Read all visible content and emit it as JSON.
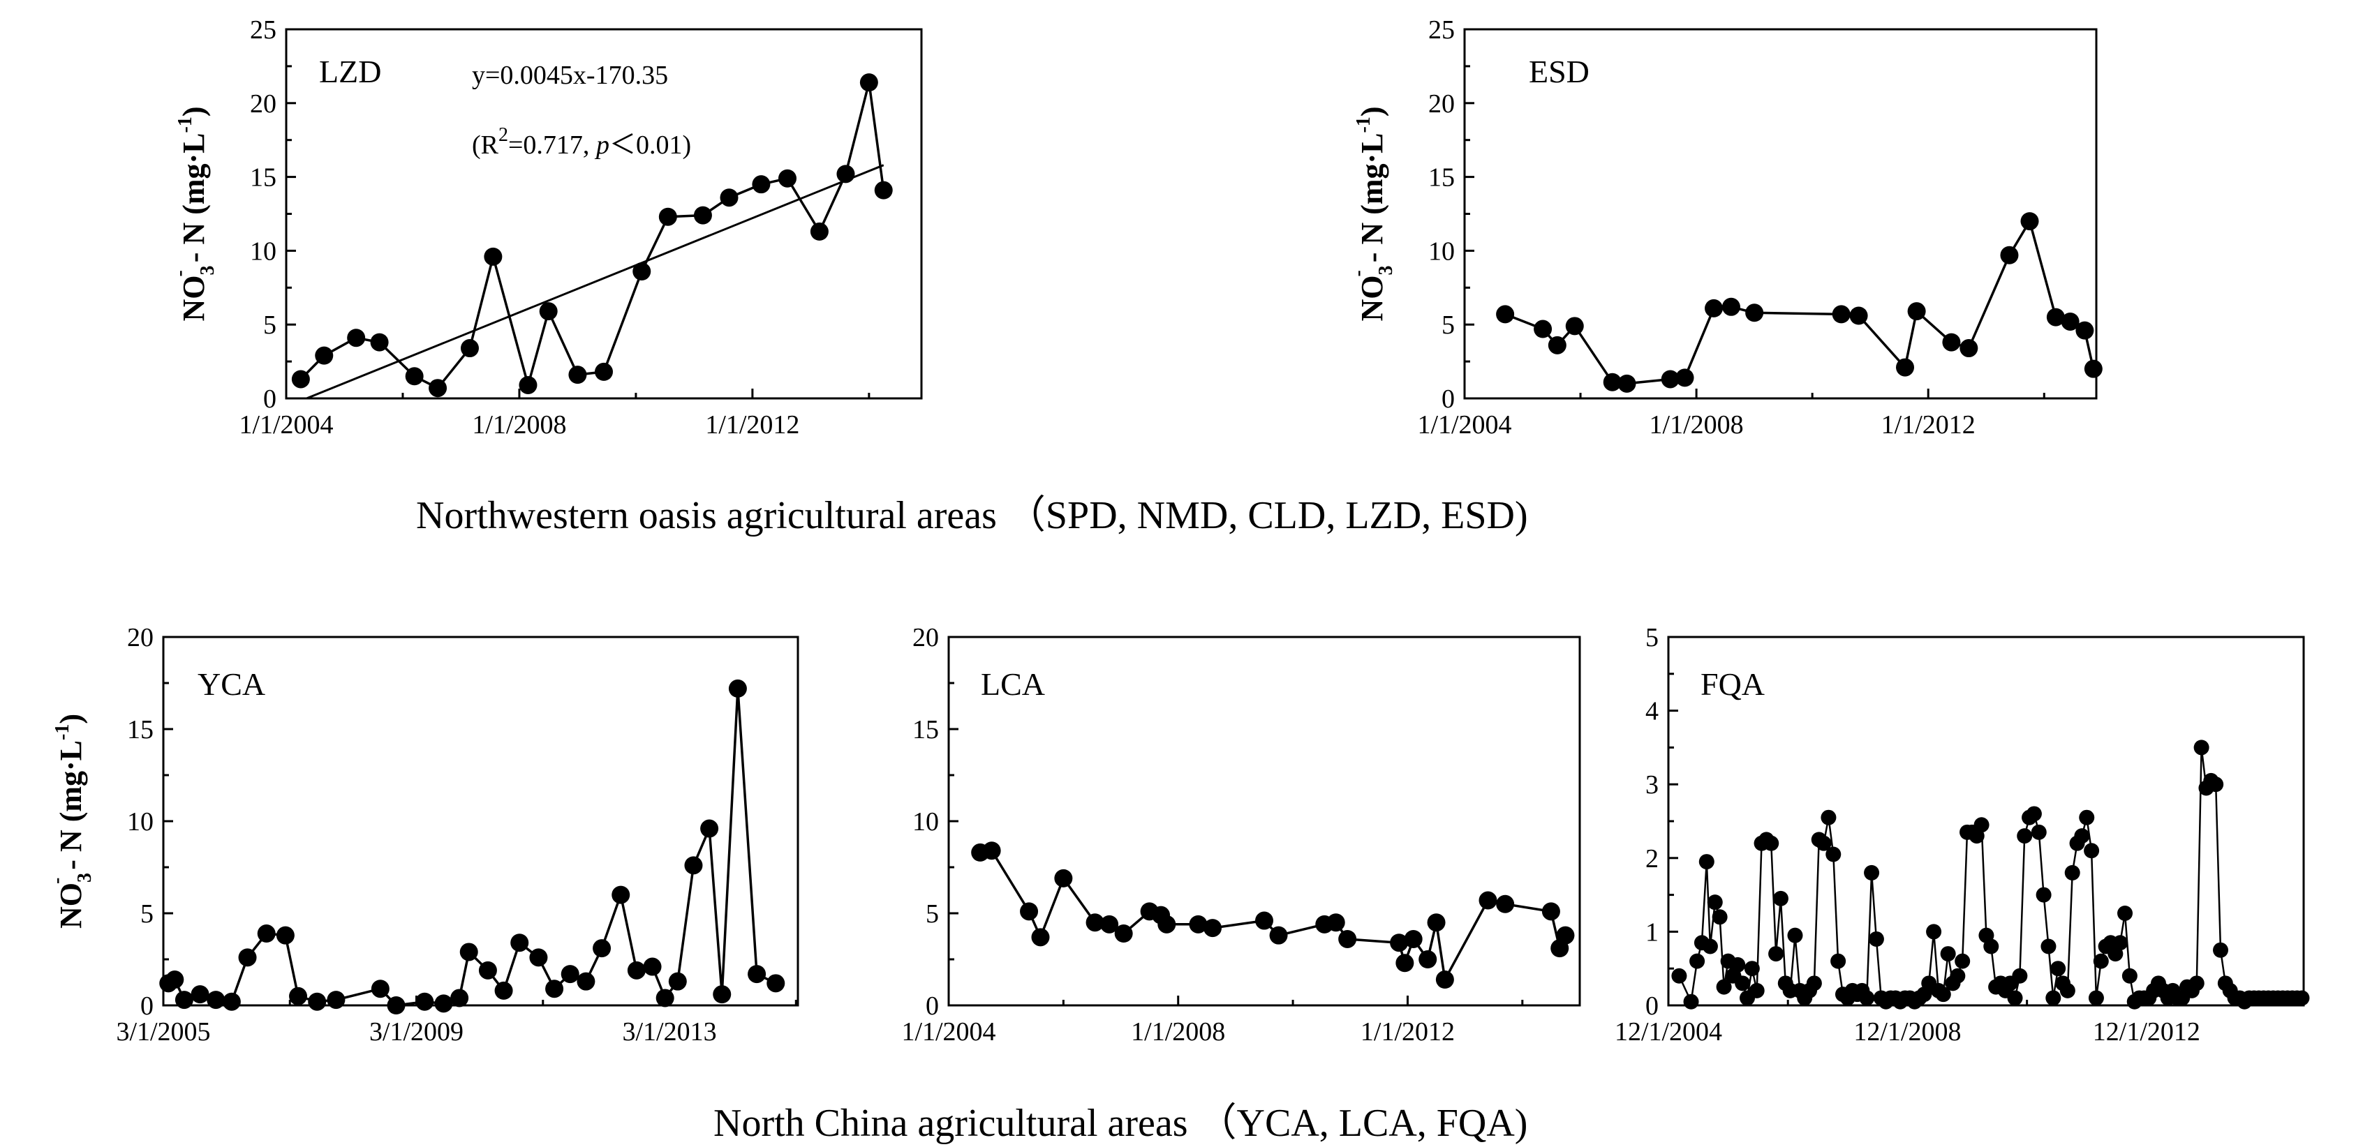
{
  "figure": {
    "caption_top": "Northwestern oasis agricultural areas （SPD, NMD, CLD, LZD, ESD)",
    "caption_bottom": "North China agricultural areas （YCA, LCA, FQA)"
  },
  "chart_data": [
    {
      "id": "LZD",
      "type": "line",
      "panel_label": "LZD",
      "ylabel": "NO3⁻ - N (mg·L⁻¹)",
      "xlim": [
        2004.0,
        2014.9
      ],
      "ylim": [
        0,
        25
      ],
      "yticks": [
        0,
        5,
        10,
        15,
        20,
        25
      ],
      "xticks": [
        {
          "v": 2004.0,
          "label": "1/1/2004"
        },
        {
          "v": 2008.0,
          "label": "1/1/2008"
        },
        {
          "v": 2012.0,
          "label": "1/1/2012"
        }
      ],
      "x": [
        2004.25,
        2004.65,
        2005.2,
        2005.6,
        2006.2,
        2006.6,
        2007.15,
        2007.55,
        2008.15,
        2008.5,
        2009.0,
        2009.45,
        2010.1,
        2010.55,
        2011.15,
        2011.6,
        2012.15,
        2012.6,
        2013.15,
        2013.6,
        2014.0,
        2014.25
      ],
      "values": [
        1.3,
        2.9,
        4.1,
        3.8,
        1.5,
        0.7,
        3.4,
        9.6,
        0.9,
        5.9,
        1.6,
        1.8,
        8.6,
        12.3,
        12.4,
        13.6,
        14.5,
        14.9,
        11.3,
        15.2,
        21.4,
        14.1
      ],
      "trend": {
        "x": [
          2004.35,
          2014.25
        ],
        "y": [
          0.0,
          15.8
        ]
      },
      "annotations": {
        "equation": "y=0.0045x-170.35",
        "r2_open": "(R",
        "r2_sup": "2",
        "r2_mid": "=0.717, ",
        "p_italic": "p",
        "r2_close": "＜0.01)"
      }
    },
    {
      "id": "ESD",
      "type": "line",
      "panel_label": "ESD",
      "ylabel": "NO3⁻ - N (mg·L⁻¹)",
      "xlim": [
        2004.0,
        2014.9
      ],
      "ylim": [
        0,
        25
      ],
      "yticks": [
        0,
        5,
        10,
        15,
        20,
        25
      ],
      "xticks": [
        {
          "v": 2004.0,
          "label": "1/1/2004"
        },
        {
          "v": 2008.0,
          "label": "1/1/2008"
        },
        {
          "v": 2012.0,
          "label": "1/1/2012"
        }
      ],
      "x": [
        2004.7,
        2005.35,
        2005.6,
        2005.9,
        2006.55,
        2006.8,
        2007.55,
        2007.8,
        2008.3,
        2008.6,
        2009.0,
        2010.5,
        2010.8,
        2011.6,
        2011.8,
        2012.4,
        2012.7,
        2013.4,
        2013.75,
        2014.2,
        2014.45,
        2014.7,
        2014.85
      ],
      "values": [
        5.7,
        4.7,
        3.6,
        4.9,
        1.1,
        1.0,
        1.3,
        1.4,
        6.1,
        6.2,
        5.8,
        5.7,
        5.6,
        2.1,
        5.9,
        3.8,
        3.4,
        9.7,
        12.0,
        5.5,
        5.2,
        4.6,
        2.0
      ]
    },
    {
      "id": "YCA",
      "type": "line",
      "panel_label": "YCA",
      "ylabel": "NO3⁻ - N (mg·L⁻¹)",
      "xlim": [
        2005.17,
        2015.2
      ],
      "ylim": [
        0,
        20
      ],
      "yticks": [
        0,
        5,
        10,
        15,
        20
      ],
      "xticks": [
        {
          "v": 2005.17,
          "label": "3/1/2005"
        },
        {
          "v": 2009.17,
          "label": "3/1/2009"
        },
        {
          "v": 2013.17,
          "label": "3/1/2013"
        }
      ],
      "x": [
        2005.25,
        2005.35,
        2005.5,
        2005.75,
        2006.0,
        2006.25,
        2006.5,
        2006.8,
        2007.1,
        2007.3,
        2007.6,
        2007.9,
        2008.6,
        2008.85,
        2009.3,
        2009.6,
        2009.85,
        2010.0,
        2010.3,
        2010.55,
        2010.8,
        2011.1,
        2011.35,
        2011.6,
        2011.85,
        2012.1,
        2012.4,
        2012.65,
        2012.9,
        2013.1,
        2013.3,
        2013.55,
        2013.8,
        2014.0,
        2014.25,
        2014.55,
        2014.85
      ],
      "values": [
        1.2,
        1.4,
        0.3,
        0.6,
        0.3,
        0.2,
        2.6,
        3.9,
        3.8,
        0.5,
        0.2,
        0.3,
        0.9,
        0.0,
        0.2,
        0.1,
        0.4,
        2.9,
        1.9,
        0.8,
        3.4,
        2.6,
        0.9,
        1.7,
        1.3,
        3.1,
        6.0,
        1.9,
        2.1,
        0.4,
        1.3,
        7.6,
        9.6,
        0.6,
        17.2,
        1.7,
        1.2
      ]
    },
    {
      "id": "LCA",
      "type": "line",
      "panel_label": "LCA",
      "ylabel": "",
      "xlim": [
        2004.0,
        2015.0
      ],
      "ylim": [
        0,
        20
      ],
      "yticks": [
        0,
        5,
        10,
        15,
        20
      ],
      "xticks": [
        {
          "v": 2004.0,
          "label": "1/1/2004"
        },
        {
          "v": 2008.0,
          "label": "1/1/2008"
        },
        {
          "v": 2012.0,
          "label": "1/1/2012"
        }
      ],
      "x": [
        2004.55,
        2004.75,
        2005.4,
        2005.6,
        2006.0,
        2006.55,
        2006.8,
        2007.05,
        2007.5,
        2007.7,
        2007.8,
        2008.35,
        2008.6,
        2009.5,
        2009.75,
        2010.55,
        2010.75,
        2010.95,
        2011.85,
        2011.95,
        2012.1,
        2012.35,
        2012.5,
        2012.65,
        2013.4,
        2013.7,
        2014.5,
        2014.65,
        2014.75
      ],
      "values": [
        8.3,
        8.4,
        5.1,
        3.7,
        6.9,
        4.5,
        4.4,
        3.9,
        5.1,
        4.9,
        4.4,
        4.4,
        4.2,
        4.6,
        3.8,
        4.4,
        4.5,
        3.6,
        3.4,
        2.3,
        3.6,
        2.5,
        4.5,
        1.4,
        5.7,
        5.5,
        5.1,
        3.1,
        3.8
      ]
    },
    {
      "id": "FQA",
      "type": "line",
      "panel_label": "FQA",
      "ylabel": "",
      "xlim": [
        2004.92,
        2015.55
      ],
      "ylim": [
        0,
        5
      ],
      "yticks": [
        0,
        1,
        2,
        3,
        4,
        5
      ],
      "xticks": [
        {
          "v": 2004.92,
          "label": "12/1/2004"
        },
        {
          "v": 2008.92,
          "label": "12/1/2008"
        },
        {
          "v": 2012.92,
          "label": "12/1/2012"
        }
      ],
      "x": [
        2005.1,
        2005.3,
        2005.4,
        2005.48,
        2005.56,
        2005.62,
        2005.7,
        2005.78,
        2005.85,
        2005.92,
        2006.0,
        2006.08,
        2006.16,
        2006.24,
        2006.32,
        2006.4,
        2006.48,
        2006.56,
        2006.64,
        2006.72,
        2006.8,
        2006.88,
        2006.96,
        2007.04,
        2007.12,
        2007.2,
        2007.28,
        2007.36,
        2007.44,
        2007.52,
        2007.6,
        2007.68,
        2007.76,
        2007.84,
        2007.92,
        2008.0,
        2008.08,
        2008.16,
        2008.24,
        2008.32,
        2008.4,
        2008.48,
        2008.56,
        2008.64,
        2008.72,
        2008.8,
        2008.88,
        2008.96,
        2009.04,
        2009.12,
        2009.2,
        2009.28,
        2009.36,
        2009.44,
        2009.52,
        2009.6,
        2009.68,
        2009.76,
        2009.84,
        2009.92,
        2010.0,
        2010.08,
        2010.16,
        2010.24,
        2010.32,
        2010.4,
        2010.48,
        2010.56,
        2010.64,
        2010.72,
        2010.8,
        2010.88,
        2010.96,
        2011.04,
        2011.12,
        2011.2,
        2011.28,
        2011.36,
        2011.44,
        2011.52,
        2011.6,
        2011.68,
        2011.76,
        2011.84,
        2011.92,
        2012.0,
        2012.08,
        2012.16,
        2012.24,
        2012.32,
        2012.4,
        2012.48,
        2012.56,
        2012.64,
        2012.72,
        2012.8,
        2012.88,
        2012.96,
        2013.04,
        2013.12,
        2013.2,
        2013.28,
        2013.36,
        2013.44,
        2013.52,
        2013.6,
        2013.68,
        2013.76,
        2013.84,
        2013.92,
        2014.0,
        2014.08,
        2014.16,
        2014.24,
        2014.32,
        2014.4,
        2014.48,
        2014.56,
        2014.64,
        2014.72,
        2014.8,
        2014.88,
        2014.96,
        2015.04,
        2015.12,
        2015.2,
        2015.28,
        2015.36,
        2015.44,
        2015.52
      ],
      "values": [
        0.4,
        0.05,
        0.6,
        0.85,
        1.95,
        0.8,
        1.4,
        1.2,
        0.25,
        0.6,
        0.4,
        0.55,
        0.3,
        0.1,
        0.5,
        0.2,
        2.2,
        2.25,
        2.2,
        0.7,
        1.45,
        0.3,
        0.2,
        0.95,
        0.2,
        0.1,
        0.2,
        0.3,
        2.25,
        2.2,
        2.55,
        2.05,
        0.6,
        0.15,
        0.1,
        0.2,
        0.15,
        0.2,
        0.1,
        1.8,
        0.9,
        0.1,
        0.05,
        0.1,
        0.1,
        0.05,
        0.1,
        0.1,
        0.05,
        0.1,
        0.15,
        0.3,
        1.0,
        0.2,
        0.15,
        0.7,
        0.3,
        0.4,
        0.6,
        2.35,
        2.35,
        2.3,
        2.45,
        0.95,
        0.8,
        0.25,
        0.3,
        0.2,
        0.3,
        0.1,
        0.4,
        2.3,
        2.55,
        2.6,
        2.35,
        1.5,
        0.8,
        0.1,
        0.5,
        0.3,
        0.2,
        1.8,
        2.2,
        2.3,
        2.55,
        2.1,
        0.1,
        0.6,
        0.8,
        0.85,
        0.7,
        0.85,
        1.25,
        0.4,
        0.05,
        0.1,
        0.1,
        0.1,
        0.2,
        0.3,
        0.2,
        0.1,
        0.2,
        0.1,
        0.1,
        0.25,
        0.2,
        0.3,
        3.5,
        2.95,
        3.05,
        3.0,
        0.75,
        0.3,
        0.2,
        0.1,
        0.1,
        0.05,
        0.1,
        0.1,
        0.1,
        0.1,
        0.1,
        0.1,
        0.1,
        0.1,
        0.1,
        0.1,
        0.1,
        0.1
      ]
    }
  ]
}
